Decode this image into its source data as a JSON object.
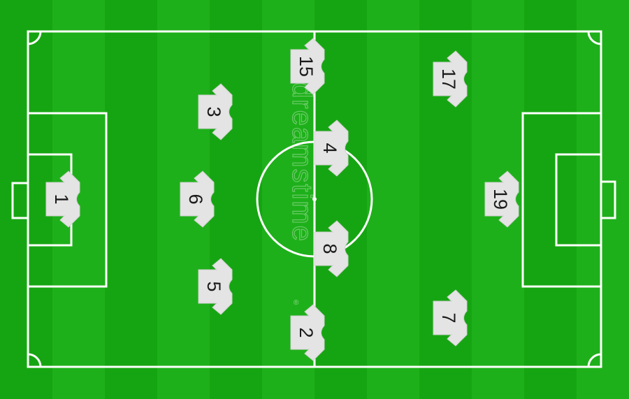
{
  "pitch": {
    "grass_color": "#16a512",
    "stripe_color": "#1eb01a",
    "line_color": "#ffffff",
    "shirt_color": "#e4e4e4",
    "number_color": "#1a1a1a"
  },
  "watermark": {
    "text": "dreamstime",
    "registered": "®"
  },
  "players": [
    {
      "number": "1"
    },
    {
      "number": "3"
    },
    {
      "number": "6"
    },
    {
      "number": "5"
    },
    {
      "number": "15"
    },
    {
      "number": "4"
    },
    {
      "number": "8"
    },
    {
      "number": "2"
    },
    {
      "number": "17"
    },
    {
      "number": "19"
    },
    {
      "number": "7"
    }
  ]
}
